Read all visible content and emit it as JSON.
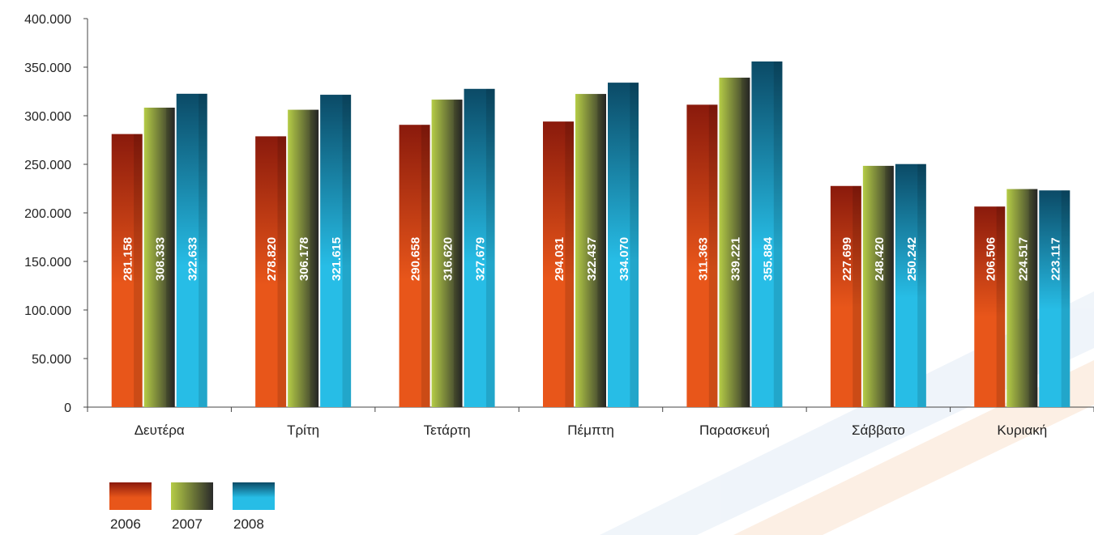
{
  "chart_data": {
    "type": "bar",
    "categories": [
      "Δευτέρα",
      "Τρίτη",
      "Τετάρτη",
      "Πέμπτη",
      "Παρασκευή",
      "Σάββατο",
      "Κυριακή"
    ],
    "series": [
      {
        "name": "2006",
        "values": [
          281158,
          278820,
          290658,
          294031,
          311363,
          227699,
          206506
        ],
        "labels": [
          "281.158",
          "278.820",
          "290.658",
          "294.031",
          "311.363",
          "227.699",
          "206.506"
        ],
        "color": "#e8561a",
        "color_dark": "#8a1a0c"
      },
      {
        "name": "2007",
        "values": [
          308333,
          306178,
          316620,
          322437,
          339221,
          248420,
          224517
        ],
        "labels": [
          "308.333",
          "306.178",
          "316.620",
          "322.437",
          "339.221",
          "248.420",
          "224.517"
        ],
        "color": "#b5cc46",
        "color_dark": "#2a2a2a"
      },
      {
        "name": "2008",
        "values": [
          322633,
          321615,
          327679,
          334070,
          355884,
          250242,
          223117
        ],
        "labels": [
          "322.633",
          "321.615",
          "327.679",
          "334.070",
          "355.884",
          "250.242",
          "223.117"
        ],
        "color": "#27bde6",
        "color_dark": "#0b4a66"
      }
    ],
    "ylim": [
      0,
      400000
    ],
    "yticks": [
      0,
      50000,
      100000,
      150000,
      200000,
      250000,
      300000,
      350000,
      400000
    ],
    "ytick_labels": [
      "0",
      "50.000",
      "100.000",
      "150.000",
      "200.000",
      "250.000",
      "300.000",
      "350.000",
      "400.000"
    ],
    "title": "",
    "xlabel": "",
    "ylabel": "",
    "grid": false,
    "legend_position": "bottom-left"
  }
}
